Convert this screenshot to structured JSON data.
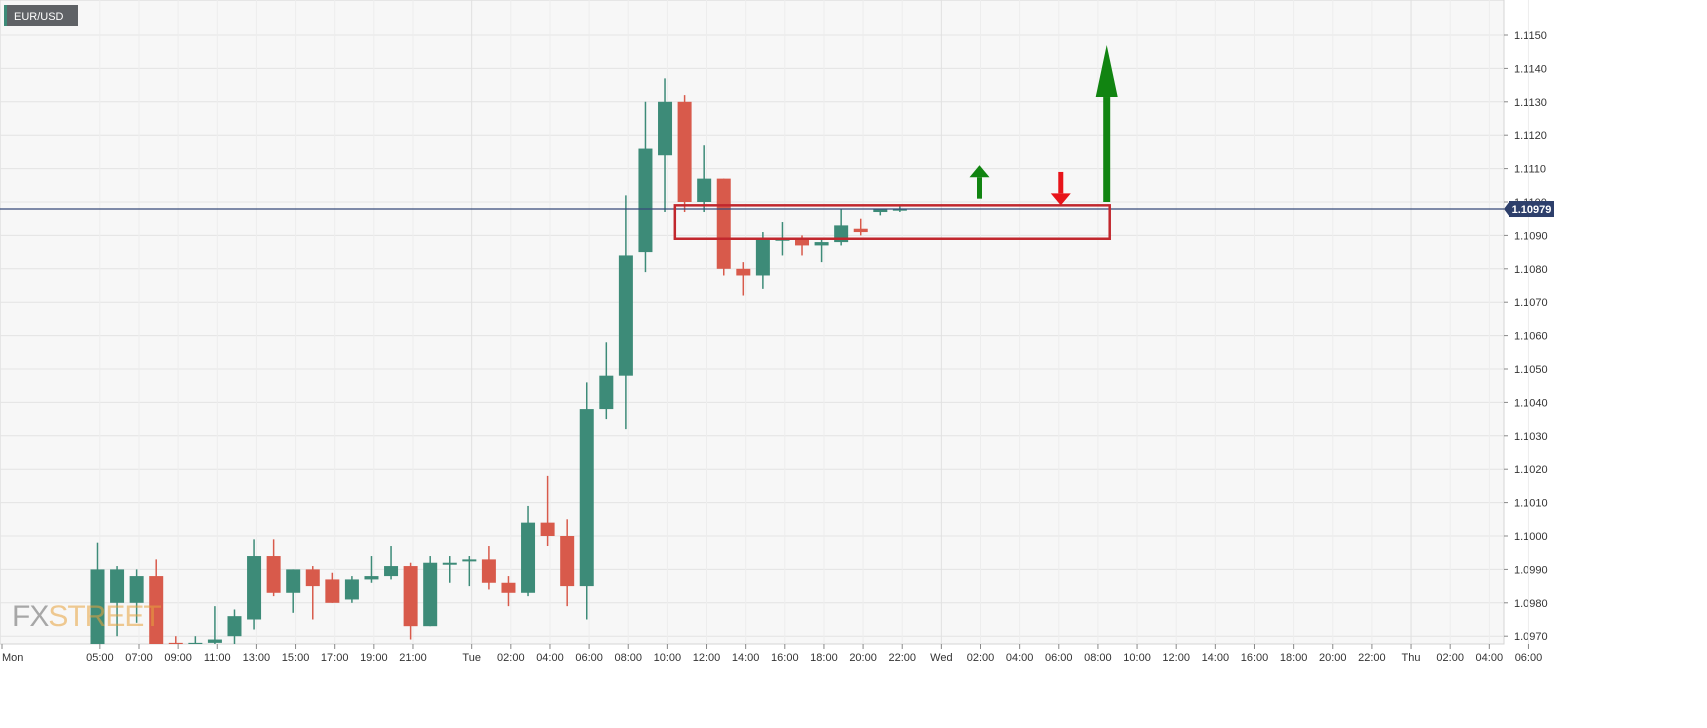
{
  "chart_data": {
    "type": "candlestick",
    "symbol": "EUR/USD",
    "current_price": "1.10979",
    "ylim": [
      1.0965,
      1.116
    ],
    "y_ticks": [
      "1.0970",
      "1.0980",
      "1.0990",
      "1.1000",
      "1.1010",
      "1.1020",
      "1.1030",
      "1.1040",
      "1.1050",
      "1.1060",
      "1.1070",
      "1.1080",
      "1.1090",
      "1.1100",
      "1.1110",
      "1.1120",
      "1.1130",
      "1.1140",
      "1.1150"
    ],
    "x_ticks": [
      "Mon",
      "05:00",
      "07:00",
      "09:00",
      "11:00",
      "13:00",
      "15:00",
      "17:00",
      "19:00",
      "21:00",
      "Tue",
      "02:00",
      "04:00",
      "06:00",
      "08:00",
      "10:00",
      "12:00",
      "14:00",
      "16:00",
      "18:00",
      "20:00",
      "22:00",
      "Wed",
      "02:00",
      "04:00",
      "06:00",
      "08:00",
      "10:00",
      "12:00",
      "14:00",
      "16:00",
      "18:00",
      "20:00",
      "22:00",
      "Thu",
      "02:00",
      "04:00",
      "06:00"
    ],
    "candles": [
      {
        "o": 1.0965,
        "h": 1.0998,
        "l": 1.096,
        "c": 1.099
      },
      {
        "o": 1.098,
        "h": 1.0991,
        "l": 1.097,
        "c": 1.099
      },
      {
        "o": 1.098,
        "h": 1.099,
        "l": 1.0974,
        "c": 1.0988
      },
      {
        "o": 1.0988,
        "h": 1.0993,
        "l": 1.096,
        "c": 1.0965
      },
      {
        "o": 1.0968,
        "h": 1.097,
        "l": 1.0962,
        "c": 1.0965
      },
      {
        "o": 1.0965,
        "h": 1.097,
        "l": 1.0962,
        "c": 1.0968
      },
      {
        "o": 1.0968,
        "h": 1.0979,
        "l": 1.0965,
        "c": 1.0969
      },
      {
        "o": 1.097,
        "h": 1.0978,
        "l": 1.0966,
        "c": 1.0976
      },
      {
        "o": 1.0975,
        "h": 1.0999,
        "l": 1.0972,
        "c": 1.0994
      },
      {
        "o": 1.0994,
        "h": 1.0999,
        "l": 1.0982,
        "c": 1.0983
      },
      {
        "o": 1.0983,
        "h": 1.099,
        "l": 1.0977,
        "c": 1.099
      },
      {
        "o": 1.099,
        "h": 1.0991,
        "l": 1.0975,
        "c": 1.0985
      },
      {
        "o": 1.0987,
        "h": 1.0989,
        "l": 1.098,
        "c": 1.098
      },
      {
        "o": 1.0981,
        "h": 1.0988,
        "l": 1.098,
        "c": 1.0987
      },
      {
        "o": 1.0987,
        "h": 1.0994,
        "l": 1.0986,
        "c": 1.0988
      },
      {
        "o": 1.0988,
        "h": 1.0997,
        "l": 1.0987,
        "c": 1.0991
      },
      {
        "o": 1.0991,
        "h": 1.0992,
        "l": 1.0969,
        "c": 1.0973
      },
      {
        "o": 1.0973,
        "h": 1.0994,
        "l": 1.0973,
        "c": 1.0992
      },
      {
        "o": 1.0992,
        "h": 1.0994,
        "l": 1.0986,
        "c": 1.0992
      },
      {
        "o": 1.0993,
        "h": 1.0994,
        "l": 1.0985,
        "c": 1.0993
      },
      {
        "o": 1.0993,
        "h": 1.0997,
        "l": 1.0984,
        "c": 1.0986
      },
      {
        "o": 1.0986,
        "h": 1.0988,
        "l": 1.0979,
        "c": 1.0983
      },
      {
        "o": 1.0983,
        "h": 1.1009,
        "l": 1.0982,
        "c": 1.1004
      },
      {
        "o": 1.1004,
        "h": 1.1018,
        "l": 1.0997,
        "c": 1.1
      },
      {
        "o": 1.1,
        "h": 1.1005,
        "l": 1.0979,
        "c": 1.0985
      },
      {
        "o": 1.0985,
        "h": 1.1046,
        "l": 1.0975,
        "c": 1.1038
      },
      {
        "o": 1.1038,
        "h": 1.1058,
        "l": 1.1035,
        "c": 1.1048
      },
      {
        "o": 1.1048,
        "h": 1.1102,
        "l": 1.1032,
        "c": 1.1084
      },
      {
        "o": 1.1085,
        "h": 1.113,
        "l": 1.1079,
        "c": 1.1116
      },
      {
        "o": 1.1114,
        "h": 1.1137,
        "l": 1.1097,
        "c": 1.113
      },
      {
        "o": 1.113,
        "h": 1.1132,
        "l": 1.1097,
        "c": 1.11
      },
      {
        "o": 1.11,
        "h": 1.1117,
        "l": 1.1097,
        "c": 1.1107
      },
      {
        "o": 1.1107,
        "h": 1.1107,
        "l": 1.1078,
        "c": 1.108
      },
      {
        "o": 1.108,
        "h": 1.1082,
        "l": 1.1072,
        "c": 1.1078
      },
      {
        "o": 1.1078,
        "h": 1.1091,
        "l": 1.1074,
        "c": 1.1089
      },
      {
        "o": 1.1089,
        "h": 1.1094,
        "l": 1.1084,
        "c": 1.1089
      },
      {
        "o": 1.1089,
        "h": 1.109,
        "l": 1.1084,
        "c": 1.1087
      },
      {
        "o": 1.1087,
        "h": 1.1089,
        "l": 1.1082,
        "c": 1.1088
      },
      {
        "o": 1.1088,
        "h": 1.1098,
        "l": 1.1087,
        "c": 1.1093
      },
      {
        "o": 1.1092,
        "h": 1.1095,
        "l": 1.109,
        "c": 1.1091
      },
      {
        "o": 1.1097,
        "h": 1.1098,
        "l": 1.1096,
        "c": 1.1098
      },
      {
        "o": 1.1098,
        "h": 1.1099,
        "l": 1.1097,
        "c": 1.1098
      }
    ],
    "annotations": {
      "box": {
        "x_start_candle": 29.5,
        "x_end_hours": 56.5,
        "y_top": 1.1099,
        "y_bottom": 1.1089,
        "color": "#c1272d"
      },
      "up_arrow_small": {
        "x_hours": 50,
        "y_from": 1.1101,
        "y_to": 1.1111,
        "color": "#118411"
      },
      "down_arrow_small": {
        "x_hours": 54,
        "y_from": 1.1109,
        "y_to": 1.1099,
        "color": "#e8141a"
      },
      "up_arrow_big": {
        "x_hours": 56.5,
        "y_from": 1.11,
        "y_to": 1.1147,
        "color": "#118411"
      }
    }
  },
  "colors": {
    "up": "#3d8b78",
    "down": "#d85a4b",
    "price_line": "#354a7a",
    "price_badge": "#2d3f6b",
    "grid": "#e4e4e4",
    "bg": "#f7f7f7"
  },
  "logo_text": "FXSTREET"
}
